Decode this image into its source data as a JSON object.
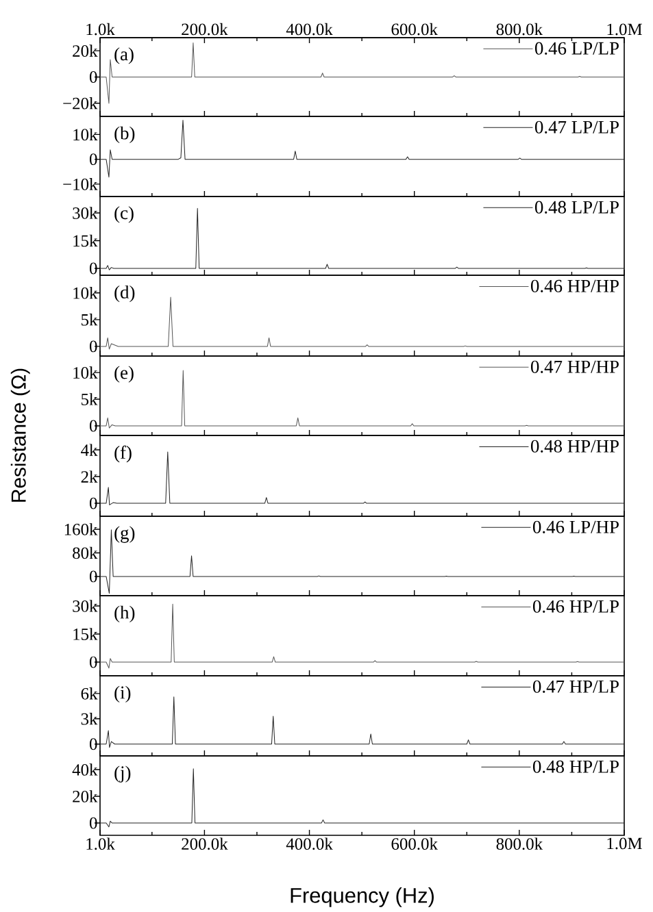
{
  "chart_data": [
    {
      "type": "line",
      "xlim": [
        1000,
        1000000
      ],
      "x2lim": [
        1000,
        1000000
      ],
      "x2ticks": [
        {
          "value": 1000,
          "label": "1.0k"
        },
        {
          "value": 100000,
          "label": null
        },
        {
          "value": 200000,
          "label": "200.0k"
        },
        {
          "value": 300000,
          "label": null
        },
        {
          "value": 400000,
          "label": "400.0k"
        },
        {
          "value": 500000,
          "label": null
        },
        {
          "value": 600000,
          "label": "600.0k"
        },
        {
          "value": 700000,
          "label": null
        },
        {
          "value": 800000,
          "label": "800.0k"
        },
        {
          "value": 900000,
          "label": null
        },
        {
          "value": 1000000,
          "label": "1.0M"
        }
      ],
      "tick_labels": [
        "y",
        "x2"
      ],
      "ylim": [
        -30000,
        30000
      ],
      "yticks": [
        {
          "value": -20000,
          "label": "−20k"
        },
        0,
        {
          "value": 20000,
          "label": "20k"
        }
      ],
      "legend": "top right",
      "annotations": [
        "(a)"
      ],
      "series": [
        {
          "name": "0.46 LP/LP",
          "color": "#555555",
          "x": [
            1000,
            12700,
            17900,
            20500,
            24000,
            175500,
            178500,
            181500,
            422000,
            425000,
            428000,
            673000,
            676000,
            679000,
            912000,
            915000,
            918000,
            1000000
          ],
          "values": [
            0,
            0,
            -20100,
            13300,
            0,
            0,
            26100,
            0,
            0,
            3000,
            0,
            0,
            1000,
            0,
            0,
            500,
            0,
            0
          ]
        }
      ]
    },
    {
      "type": "line",
      "xlim": [
        1000,
        1000000
      ],
      "tick_labels": "y",
      "ylim": [
        -15000,
        17300
      ],
      "yticks": [
        {
          "value": -10000,
          "label": "−10k"
        },
        0,
        {
          "value": 10000,
          "label": "10k"
        }
      ],
      "legend": "top right",
      "annotations": [
        "(b)"
      ],
      "series": [
        {
          "name": "0.47 LP/LP",
          "color": "#222222",
          "x": [
            1000,
            12700,
            17900,
            20500,
            24000,
            150000,
            155000,
            159000,
            163000,
            370000,
            373000,
            376000,
            584000,
            587000,
            590000,
            798000,
            801000,
            804000,
            1000000
          ],
          "values": [
            0,
            0,
            -7200,
            3800,
            0,
            0,
            600,
            15800,
            0,
            0,
            3300,
            0,
            0,
            1000,
            0,
            0,
            500,
            0,
            0
          ]
        }
      ]
    },
    {
      "type": "line",
      "xlim": [
        1000,
        1000000
      ],
      "tick_labels": "y",
      "ylim": [
        -3700,
        38900
      ],
      "yticks": [
        0,
        {
          "value": 15000,
          "label": "15k"
        },
        {
          "value": 30000,
          "label": "30k"
        }
      ],
      "legend": "top right",
      "annotations": [
        "(c)"
      ],
      "series": [
        {
          "name": "0.48 LP/LP",
          "color": "#222222",
          "x": [
            1000,
            12700,
            15600,
            18600,
            22500,
            27000,
            183500,
            186700,
            189900,
            430800,
            433800,
            436800,
            678000,
            681000,
            684000,
            925000,
            928000,
            931000,
            1000000
          ],
          "values": [
            0,
            0,
            1600,
            -800,
            500,
            0,
            0,
            32500,
            0,
            0,
            2200,
            0,
            0,
            700,
            0,
            0,
            300,
            0,
            0
          ]
        }
      ]
    },
    {
      "type": "line",
      "xlim": [
        1000,
        1000000
      ],
      "tick_labels": "y",
      "ylim": [
        -1800,
        13300
      ],
      "yticks": [
        0,
        {
          "value": 5000,
          "label": "5k"
        },
        {
          "value": 10000,
          "label": "10k"
        }
      ],
      "legend": "top right",
      "annotations": [
        "(d)"
      ],
      "series": [
        {
          "name": "0.46 HP/HP",
          "color": "#555555",
          "x": [
            1000,
            12700,
            15600,
            18600,
            22500,
            35700,
            131000,
            135600,
            140000,
            320000,
            323000,
            326000,
            507000,
            510000,
            513000,
            694000,
            697000,
            700000,
            1000000
          ],
          "values": [
            0,
            0,
            1600,
            -500,
            500,
            0,
            0,
            9200,
            0,
            0,
            1600,
            0,
            0,
            300,
            0,
            0,
            100,
            0,
            0
          ]
        }
      ]
    },
    {
      "type": "line",
      "xlim": [
        1000,
        1000000
      ],
      "tick_labels": "y",
      "ylim": [
        -1800,
        13100
      ],
      "yticks": [
        0,
        {
          "value": 5000,
          "label": "5k"
        },
        {
          "value": 10000,
          "label": "10k"
        }
      ],
      "legend": "top right",
      "annotations": [
        "(e)"
      ],
      "ylabel": "Resistance (Ω)",
      "series": [
        {
          "name": "0.47 HP/HP",
          "color": "#555555",
          "x": [
            1000,
            12700,
            15600,
            18600,
            23800,
            30000,
            156400,
            159400,
            162400,
            375000,
            378000,
            381000,
            593000,
            596000,
            599000,
            811000,
            814000,
            817000,
            1000000
          ],
          "values": [
            0,
            0,
            1500,
            -400,
            200,
            0,
            0,
            10400,
            0,
            0,
            1500,
            0,
            0,
            400,
            0,
            0,
            100,
            0,
            0
          ]
        }
      ]
    },
    {
      "type": "line",
      "xlim": [
        1000,
        1000000
      ],
      "tick_labels": "y",
      "ylim": [
        -970,
        5080
      ],
      "yticks": [
        0,
        {
          "value": 2000,
          "label": "2k"
        },
        {
          "value": 4000,
          "label": "4k"
        }
      ],
      "legend": "top right",
      "annotations": [
        "(f)"
      ],
      "series": [
        {
          "name": "0.48 HP/HP",
          "color": "#222222",
          "x": [
            1000,
            12700,
            16900,
            19000,
            26000,
            33000,
            126000,
            130000,
            134000,
            315000,
            318000,
            321000,
            503000,
            506000,
            509000,
            1000000
          ],
          "values": [
            0,
            0,
            1190,
            -120,
            50,
            0,
            0,
            3850,
            0,
            0,
            430,
            0,
            0,
            100,
            0,
            0
          ]
        }
      ]
    },
    {
      "type": "line",
      "xlim": [
        1000,
        1000000
      ],
      "tick_labels": "y",
      "ylim": [
        -65000,
        204000
      ],
      "yticks": [
        0,
        {
          "value": 80000,
          "label": "80k"
        },
        {
          "value": 160000,
          "label": "160k"
        }
      ],
      "legend": "top right",
      "annotations": [
        "(g)"
      ],
      "series": [
        {
          "name": "0.46 LP/HP",
          "color": "#222222",
          "x": [
            1000,
            12700,
            18600,
            22500,
            26000,
            172400,
            175400,
            178400,
            415000,
            418000,
            421000,
            658000,
            661000,
            664000,
            901000,
            904000,
            907000,
            1000000
          ],
          "values": [
            0,
            0,
            -57000,
            158000,
            0,
            0,
            70000,
            0,
            0,
            2000,
            0,
            0,
            1000,
            0,
            0,
            1000,
            0,
            0
          ]
        }
      ]
    },
    {
      "type": "line",
      "xlim": [
        1000,
        1000000
      ],
      "tick_labels": "y",
      "ylim": [
        -7300,
        35500
      ],
      "yticks": [
        0,
        {
          "value": 15000,
          "label": "15k"
        },
        {
          "value": 30000,
          "label": "30k"
        }
      ],
      "legend": "top right",
      "annotations": [
        "(h)"
      ],
      "series": [
        {
          "name": "0.46 HP/LP",
          "color": "#555555",
          "x": [
            1000,
            12700,
            17900,
            20500,
            24000,
            136500,
            139500,
            142500,
            329000,
            332000,
            335000,
            522000,
            525000,
            528000,
            715000,
            718000,
            721000,
            908000,
            911000,
            914000,
            1000000
          ],
          "values": [
            0,
            0,
            -3200,
            1900,
            0,
            0,
            31000,
            0,
            0,
            2900,
            0,
            0,
            800,
            0,
            0,
            400,
            0,
            0,
            300,
            0,
            0
          ]
        }
      ]
    },
    {
      "type": "line",
      "xlim": [
        1000,
        1000000
      ],
      "tick_labels": "y",
      "ylim": [
        -1400,
        8100
      ],
      "yticks": [
        0,
        {
          "value": 3000,
          "label": "3k"
        },
        {
          "value": 6000,
          "label": "6k"
        }
      ],
      "legend": "top right",
      "annotations": [
        "(i)"
      ],
      "series": [
        {
          "name": "0.47 HP/LP",
          "color": "#222222",
          "x": [
            1000,
            12700,
            16900,
            19000,
            22500,
            29000,
            138700,
            141700,
            144700,
            328000,
            331000,
            334000,
            514000,
            517000,
            520000,
            700000,
            703000,
            706000,
            882000,
            885000,
            888000,
            1000000
          ],
          "values": [
            0,
            0,
            1600,
            -400,
            300,
            0,
            0,
            5600,
            0,
            0,
            3300,
            0,
            0,
            1200,
            0,
            0,
            500,
            0,
            0,
            300,
            0,
            0
          ]
        }
      ]
    },
    {
      "type": "line",
      "xlim": [
        1000,
        1000000
      ],
      "xticks": [
        {
          "value": 1000,
          "label": "1.0k"
        },
        {
          "value": 100000,
          "label": null
        },
        {
          "value": 200000,
          "label": "200.0k"
        },
        {
          "value": 300000,
          "label": null
        },
        {
          "value": 400000,
          "label": "400.0k"
        },
        {
          "value": 500000,
          "label": null
        },
        {
          "value": 600000,
          "label": "600.0k"
        },
        {
          "value": 700000,
          "label": null
        },
        {
          "value": 800000,
          "label": "800.0k"
        },
        {
          "value": 900000,
          "label": null
        },
        {
          "value": 1000000,
          "label": "1.0M"
        }
      ],
      "ylim": [
        -9200,
        50300
      ],
      "yticks": [
        0,
        {
          "value": 20000,
          "label": "20k"
        },
        {
          "value": 40000,
          "label": "40k"
        }
      ],
      "legend": "top right",
      "annotations": [
        "(j)"
      ],
      "xlabel": "Frequency (Hz)",
      "series": [
        {
          "name": "0.48 HP/LP",
          "color": "#222222",
          "x": [
            1000,
            12700,
            17900,
            20500,
            24000,
            175900,
            178900,
            181900,
            423000,
            426000,
            429000,
            1000000
          ],
          "values": [
            0,
            0,
            -2900,
            1400,
            0,
            0,
            40700,
            0,
            0,
            2400,
            0,
            0
          ]
        }
      ]
    }
  ]
}
